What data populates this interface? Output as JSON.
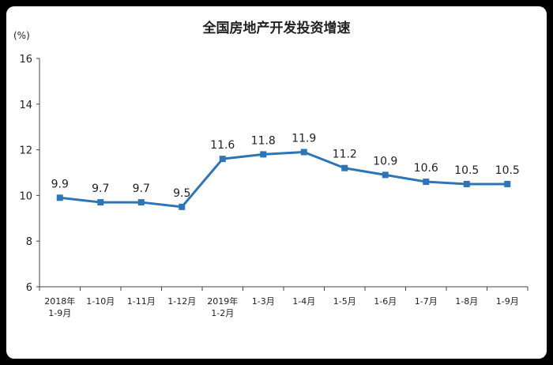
{
  "chart_data": {
    "type": "line",
    "title": "全国房地产开发投资增速",
    "unit": "(%)",
    "xlabel": "",
    "ylabel": "",
    "ylim": [
      6,
      16
    ],
    "yticks": [
      "6",
      "8",
      "10",
      "12",
      "14",
      "16"
    ],
    "grid": false,
    "legend": "none",
    "line_color": "#2e75b6",
    "categories": [
      [
        "2018年",
        "1-9月"
      ],
      [
        "1-10月"
      ],
      [
        "1-11月"
      ],
      [
        "1-12月"
      ],
      [
        "2019年",
        "1-2月"
      ],
      [
        "1-3月"
      ],
      [
        "1-4月"
      ],
      [
        "1-5月"
      ],
      [
        "1-6月"
      ],
      [
        "1-7月"
      ],
      [
        "1-8月"
      ],
      [
        "1-9月"
      ]
    ],
    "values": [
      9.9,
      9.7,
      9.7,
      9.5,
      11.6,
      11.8,
      11.9,
      11.2,
      10.9,
      10.6,
      10.5,
      10.5
    ],
    "data_labels": [
      "9.9",
      "9.7",
      "9.7",
      "9.5",
      "11.6",
      "11.8",
      "11.9",
      "11.2",
      "10.9",
      "10.6",
      "10.5",
      "10.5"
    ]
  }
}
